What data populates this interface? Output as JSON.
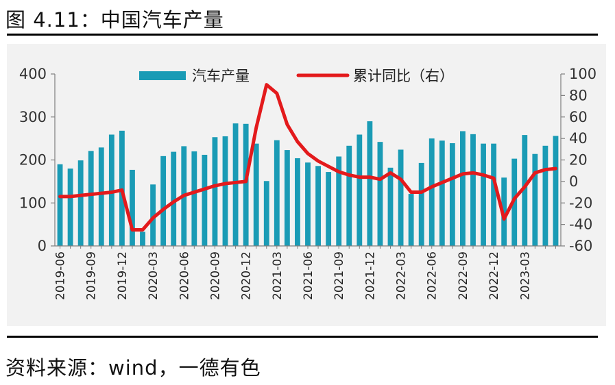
{
  "title": "图 4.11：中国汽车产量",
  "source": "资料来源：wind，一德有色",
  "chart_data": {
    "type": "bar+line",
    "categories": [
      "2019-06",
      "2019-07",
      "2019-08",
      "2019-09",
      "2019-10",
      "2019-11",
      "2019-12",
      "2020-01",
      "2020-02",
      "2020-03",
      "2020-04",
      "2020-05",
      "2020-06",
      "2020-07",
      "2020-08",
      "2020-09",
      "2020-10",
      "2020-11",
      "2020-12",
      "2021-01",
      "2021-02",
      "2021-03",
      "2021-04",
      "2021-05",
      "2021-06",
      "2021-07",
      "2021-08",
      "2021-09",
      "2021-10",
      "2021-11",
      "2021-12",
      "2022-01",
      "2022-02",
      "2022-03",
      "2022-04",
      "2022-05",
      "2022-06",
      "2022-07",
      "2022-08",
      "2022-09",
      "2022-10",
      "2022-11",
      "2022-12",
      "2023-01",
      "2023-02",
      "2023-03",
      "2023-04",
      "2023-05",
      "2023-06"
    ],
    "x_tick_labels": [
      "2019-06",
      "2019-09",
      "2019-12",
      "2020-03",
      "2020-06",
      "2020-09",
      "2020-12",
      "2021-03",
      "2021-06",
      "2021-09",
      "2021-12",
      "2022-03",
      "2022-06",
      "2022-09",
      "2022-12",
      "2023-03"
    ],
    "series": [
      {
        "name": "汽车产量",
        "type": "bar",
        "axis": "left",
        "color": "#1a9bb5",
        "values": [
          190,
          180,
          199,
          221,
          229,
          259,
          268,
          177,
          33,
          143,
          209,
          219,
          232,
          220,
          212,
          253,
          255,
          285,
          284,
          238,
          151,
          246,
          223,
          204,
          194,
          186,
          172,
          208,
          233,
          259,
          290,
          242,
          182,
          224,
          121,
          193,
          250,
          245,
          239,
          267,
          260,
          238,
          238,
          159,
          203,
          258,
          214,
          233,
          256
        ]
      },
      {
        "name": "累计同比（右）",
        "type": "line",
        "axis": "right",
        "color": "#e31a1c",
        "values": [
          -14,
          -14,
          -13,
          -12,
          -11,
          -10,
          -8,
          -45,
          -45,
          -34,
          -26,
          -19,
          -13,
          -10,
          -7,
          -4,
          -2,
          -1,
          0,
          50,
          90,
          82,
          53,
          37,
          26,
          19,
          14,
          9,
          6,
          4,
          4,
          2,
          8,
          2,
          -10,
          -10,
          -5,
          -1,
          3,
          7,
          8,
          6,
          3,
          -35,
          -16,
          -5,
          8,
          11,
          12
        ]
      }
    ],
    "yaxis_left": {
      "min": 0,
      "max": 400,
      "ticks": [
        0,
        100,
        200,
        300,
        400
      ]
    },
    "yaxis_right": {
      "min": -60,
      "max": 100,
      "ticks": [
        -60,
        -40,
        -20,
        0,
        20,
        40,
        60,
        80,
        100
      ]
    },
    "legend": {
      "placement": "top-center"
    },
    "grid": false
  }
}
